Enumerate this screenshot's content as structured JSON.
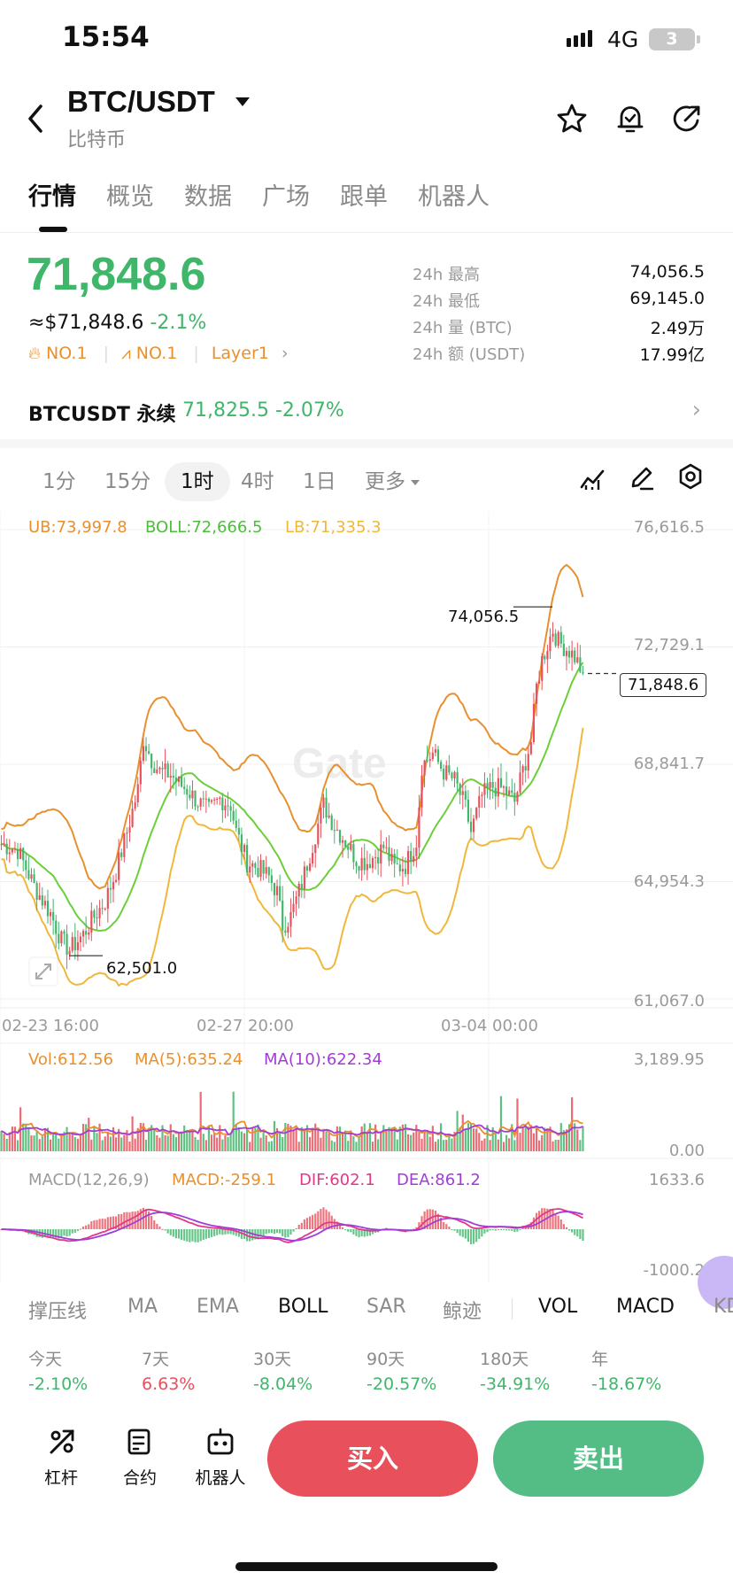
{
  "status": {
    "time": "15:54",
    "network": "4G",
    "battery": "3"
  },
  "header": {
    "pair": "BTC/USDT",
    "subtitle": "比特币"
  },
  "tabs": [
    "行情",
    "概览",
    "数据",
    "广场",
    "跟单",
    "机器人"
  ],
  "price": {
    "last": "71,848.6",
    "usd_equiv": "≈$71,848.6",
    "change": "-2.1%",
    "tag1": "NO.1",
    "tag2": "NO.1",
    "tag3": "Layer1"
  },
  "stats": [
    {
      "label": "24h  最高",
      "value": "74,056.5"
    },
    {
      "label": "24h  最低",
      "value": "69,145.0"
    },
    {
      "label": "24h  量 (BTC)",
      "value": "2.49万"
    },
    {
      "label": "24h  额 (USDT)",
      "value": "17.99亿"
    }
  ],
  "perpetual": {
    "label": "BTCUSDT 永续",
    "value": "71,825.5 -2.07%"
  },
  "timeframes": [
    "1分",
    "15分",
    "1时",
    "4时",
    "1日",
    "更多"
  ],
  "chart_data": {
    "type": "candlestick",
    "indicators": {
      "ub": "UB:73,997.8",
      "boll": "BOLL:72,666.5",
      "lb": "LB:71,335.3"
    },
    "y_ticks": [
      "76,616.5",
      "72,729.1",
      "68,841.7",
      "64,954.3",
      "61,067.0"
    ],
    "ylim": [
      61067.0,
      76616.5
    ],
    "x_ticks": [
      "02-23 16:00",
      "02-27 20:00",
      "03-04 00:00"
    ],
    "high_label": "74,056.5",
    "low_label": "62,501.0",
    "current_label": "71,848.6",
    "close_path": [
      [
        0,
        66200
      ],
      [
        6,
        66000
      ],
      [
        12,
        64800
      ],
      [
        18,
        63900
      ],
      [
        22,
        63000
      ],
      [
        25,
        62700
      ],
      [
        30,
        63200
      ],
      [
        34,
        63800
      ],
      [
        38,
        64300
      ],
      [
        42,
        65300
      ],
      [
        46,
        66600
      ],
      [
        50,
        68000
      ],
      [
        52,
        69700
      ],
      [
        55,
        69000
      ],
      [
        58,
        68600
      ],
      [
        62,
        68500
      ],
      [
        65,
        68200
      ],
      [
        68,
        68000
      ],
      [
        72,
        67600
      ],
      [
        76,
        67300
      ],
      [
        80,
        67700
      ],
      [
        84,
        67500
      ],
      [
        86,
        66600
      ],
      [
        90,
        65600
      ],
      [
        94,
        65400
      ],
      [
        98,
        65100
      ],
      [
        101,
        64600
      ],
      [
        103,
        63500
      ],
      [
        106,
        63800
      ],
      [
        110,
        64900
      ],
      [
        114,
        66200
      ],
      [
        118,
        67500
      ],
      [
        122,
        66800
      ],
      [
        126,
        66300
      ],
      [
        130,
        65700
      ],
      [
        134,
        65600
      ],
      [
        138,
        65900
      ],
      [
        140,
        66100
      ],
      [
        144,
        65400
      ],
      [
        148,
        65500
      ],
      [
        152,
        66300
      ],
      [
        154,
        68800
      ],
      [
        158,
        69200
      ],
      [
        162,
        68600
      ],
      [
        166,
        68300
      ],
      [
        170,
        67400
      ],
      [
        172,
        66600
      ],
      [
        176,
        67800
      ],
      [
        180,
        68100
      ],
      [
        184,
        68000
      ],
      [
        188,
        67600
      ],
      [
        190,
        68300
      ],
      [
        194,
        69600
      ],
      [
        196,
        71400
      ],
      [
        198,
        72300
      ],
      [
        202,
        73300
      ],
      [
        204,
        72900
      ],
      [
        208,
        72600
      ],
      [
        210,
        72400
      ],
      [
        213,
        71848.6
      ]
    ],
    "volume": {
      "vol": "Vol:612.56",
      "ma5": "MA(5):635.24",
      "ma10": "MA(10):622.34",
      "top": "3,189.95",
      "bottom": "0.00"
    },
    "macd": {
      "params": "MACD(12,26,9)",
      "macd": "MACD:-259.1",
      "dif": "DIF:602.1",
      "dea": "DEA:861.2",
      "top": "1633.6",
      "bottom": "-1000.2"
    }
  },
  "indicator_tabs": [
    "撑压线",
    "MA",
    "EMA",
    "BOLL",
    "SAR",
    "鲸迹",
    "VOL",
    "MACD",
    "KD"
  ],
  "returns": [
    {
      "label": "今天",
      "value": "-2.10%",
      "color": "#3fb66a"
    },
    {
      "label": "7天",
      "value": "6.63%",
      "color": "#e8505b"
    },
    {
      "label": "30天",
      "value": "-8.04%",
      "color": "#3fb66a"
    },
    {
      "label": "90天",
      "value": "-20.57%",
      "color": "#3fb66a"
    },
    {
      "label": "180天",
      "value": "-34.91%",
      "color": "#3fb66a"
    },
    {
      "label": "年",
      "value": "-18.67%",
      "color": "#3fb66a"
    }
  ],
  "bottom_bar": {
    "leverage": "杠杆",
    "contract": "合约",
    "bot": "机器人",
    "buy": "买入",
    "sell": "卖出"
  },
  "colors": {
    "up": "#3fb66a",
    "down": "#e8505b",
    "ub": "#e8902e",
    "boll": "#6ccf3a",
    "lb": "#f0b83a"
  },
  "watermark": "Gate"
}
